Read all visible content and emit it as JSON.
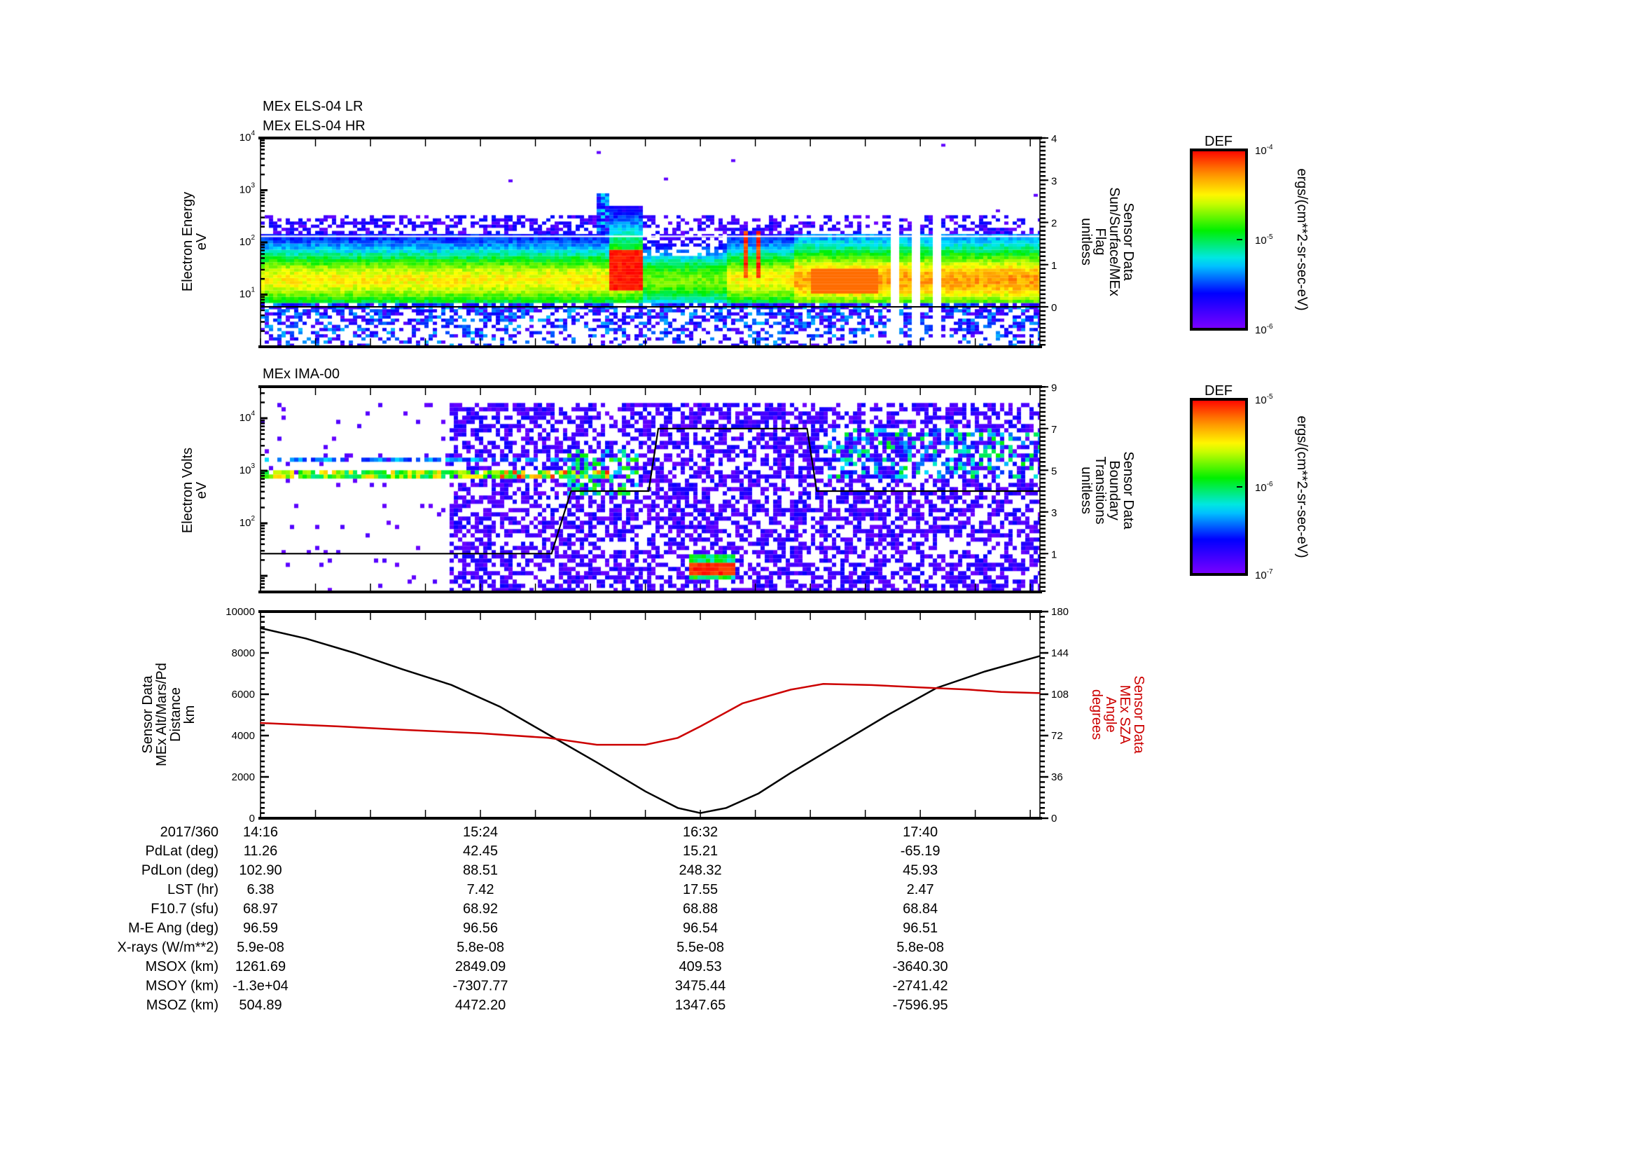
{
  "chart_data": [
    {
      "type": "heatmap",
      "titles": [
        "MEx ELS-04 LR",
        "MEx ELS-04 HR"
      ],
      "ylabel": [
        "Electron Energy",
        "eV"
      ],
      "yscale": "log",
      "ylim": [
        1,
        10000
      ],
      "yticks": [
        {
          "base": "10",
          "exp": "1"
        },
        {
          "base": "10",
          "exp": "2"
        },
        {
          "base": "10",
          "exp": "3"
        },
        {
          "base": "10",
          "exp": "4"
        }
      ],
      "ytick_values": [
        10,
        100,
        1000,
        10000
      ],
      "y2label": [
        "Sensor Data",
        "Sun/Surface/MEx",
        "Flag",
        "unitless"
      ],
      "y2lim": [
        -0.95,
        4
      ],
      "y2ticks": [
        "0",
        "1",
        "2",
        "3",
        "4"
      ],
      "y2_series": {
        "name": "Sun/Surface/MEx Flag",
        "points": [
          [
            "14:16",
            0
          ],
          [
            "18:17",
            0
          ]
        ]
      },
      "colorbar": {
        "title": "DEF",
        "unit": "ergs/(cm**2-sr-sec-eV)",
        "ticks": [
          {
            "base": "10",
            "exp": "-4"
          },
          {
            "base": "10",
            "exp": "-5"
          },
          {
            "base": "10",
            "exp": "-6"
          }
        ],
        "range_exp": [
          -6,
          -4
        ]
      },
      "features": [
        {
          "desc": "main band",
          "time": [
            "14:16",
            "18:17"
          ],
          "log_energy": [
            0.8,
            2.15
          ],
          "level": 0.6
        },
        {
          "desc": "intense burst",
          "time": [
            "16:03",
            "16:14"
          ],
          "log_energy": [
            1.05,
            1.85
          ],
          "level": 0.95
        },
        {
          "desc": "spikes",
          "time": [
            "16:45",
            "16:50"
          ],
          "log_energy": [
            1.3,
            2.2
          ],
          "level": 0.95
        },
        {
          "desc": "data gaps",
          "time": [
            [
              "17:30",
              "17:33"
            ],
            [
              "17:37",
              "17:39"
            ],
            [
              "17:43",
              "17:46"
            ]
          ]
        }
      ]
    },
    {
      "type": "heatmap",
      "title": "MEx IMA-00",
      "ylabel": [
        "Electron Volts",
        "eV"
      ],
      "yscale": "log",
      "ylim": [
        5,
        40000
      ],
      "yticks": [
        {
          "base": "10",
          "exp": "2"
        },
        {
          "base": "10",
          "exp": "3"
        },
        {
          "base": "10",
          "exp": "4"
        }
      ],
      "ytick_values": [
        100,
        1000,
        10000
      ],
      "y2label": [
        "Sensor Data",
        "Boundary",
        "Transitions",
        "unitless"
      ],
      "y2lim": [
        -0.85,
        9
      ],
      "y2ticks": [
        "1",
        "3",
        "5",
        "7",
        "9"
      ],
      "y2_series": {
        "name": "Boundary Transitions",
        "points": [
          [
            "14:16",
            1
          ],
          [
            "15:46",
            1
          ],
          [
            "15:52",
            4
          ],
          [
            "16:16",
            4
          ],
          [
            "16:19",
            7
          ],
          [
            "17:05",
            7
          ],
          [
            "17:08",
            4
          ],
          [
            "18:17",
            4
          ]
        ]
      },
      "colorbar": {
        "title": "DEF",
        "unit": "ergs/(cm**2-sr-sec-eV)",
        "ticks": [
          {
            "base": "10",
            "exp": "-5"
          },
          {
            "base": "10",
            "exp": "-6"
          },
          {
            "base": "10",
            "exp": "-7"
          }
        ],
        "range_exp": [
          -7,
          -5
        ]
      },
      "features": [
        {
          "desc": "ion band",
          "time": [
            "14:16",
            "16:00"
          ],
          "log_energy": [
            2.85,
            3.0
          ],
          "level": 0.7
        },
        {
          "desc": "background",
          "time": [
            "15:14",
            "18:17"
          ],
          "log_energy": [
            0.7,
            4.25
          ],
          "level": 0.1
        },
        {
          "desc": "low-energy burst",
          "time": [
            "16:28",
            "16:42"
          ],
          "log_energy": [
            1.0,
            1.2
          ],
          "level": 0.95
        }
      ]
    },
    {
      "type": "line",
      "ylabel": [
        "Sensor Data",
        "MEx Alt/Mars/Pd",
        "Distance",
        "km"
      ],
      "ylim": [
        0,
        10000
      ],
      "yticks": [
        "0",
        "2000",
        "4000",
        "6000",
        "8000",
        "10000"
      ],
      "y2label": [
        "Sensor Data",
        "MEx SZA",
        "Angle",
        "degrees"
      ],
      "y2lim": [
        0,
        180
      ],
      "y2ticks": [
        "0",
        "36",
        "72",
        "108",
        "144",
        "180"
      ],
      "series": [
        {
          "name": "MEx Alt/Mars/Pd Distance",
          "color": "#000000",
          "axis": "left",
          "points": [
            [
              "14:16",
              9200
            ],
            [
              "14:30",
              8700
            ],
            [
              "14:45",
              8000
            ],
            [
              "15:00",
              7200
            ],
            [
              "15:15",
              6450
            ],
            [
              "15:30",
              5400
            ],
            [
              "15:45",
              4050
            ],
            [
              "16:00",
              2700
            ],
            [
              "16:15",
              1300
            ],
            [
              "16:25",
              500
            ],
            [
              "16:32",
              250
            ],
            [
              "16:40",
              500
            ],
            [
              "16:50",
              1200
            ],
            [
              "17:00",
              2200
            ],
            [
              "17:15",
              3600
            ],
            [
              "17:30",
              5000
            ],
            [
              "17:45",
              6300
            ],
            [
              "18:00",
              7100
            ],
            [
              "18:17",
              7850
            ]
          ]
        },
        {
          "name": "MEx SZA Angle",
          "color": "#cc0000",
          "axis": "right",
          "points": [
            [
              "14:16",
              83
            ],
            [
              "14:40",
              80
            ],
            [
              "15:00",
              77
            ],
            [
              "15:24",
              74
            ],
            [
              "15:45",
              70
            ],
            [
              "16:00",
              64
            ],
            [
              "16:15",
              64
            ],
            [
              "16:25",
              70
            ],
            [
              "16:32",
              80
            ],
            [
              "16:45",
              100
            ],
            [
              "17:00",
              112
            ],
            [
              "17:10",
              117
            ],
            [
              "17:25",
              116
            ],
            [
              "17:40",
              114
            ],
            [
              "17:55",
              112
            ],
            [
              "18:05",
              110
            ],
            [
              "18:17",
              109
            ]
          ]
        }
      ]
    }
  ],
  "xaxis": {
    "date_label": "2017/360",
    "range": [
      "14:16",
      "18:17"
    ],
    "tick_labels": [
      "14:16",
      "15:24",
      "16:32",
      "17:40"
    ]
  },
  "table": {
    "rows": [
      {
        "label": "PdLat (deg)",
        "values": [
          "11.26",
          "42.45",
          "15.21",
          "-65.19"
        ]
      },
      {
        "label": "PdLon (deg)",
        "values": [
          "102.90",
          "88.51",
          "248.32",
          "45.93"
        ]
      },
      {
        "label": "LST (hr)",
        "values": [
          "6.38",
          "7.42",
          "17.55",
          "2.47"
        ]
      },
      {
        "label": "F10.7 (sfu)",
        "values": [
          "68.97",
          "68.92",
          "68.88",
          "68.84"
        ]
      },
      {
        "label": "M-E Ang (deg)",
        "values": [
          "96.59",
          "96.56",
          "96.54",
          "96.51"
        ]
      },
      {
        "label": "X-rays (W/m**2)",
        "values": [
          "5.9e-08",
          "5.8e-08",
          "5.5e-08",
          "5.8e-08"
        ]
      },
      {
        "label": "MSOX (km)",
        "values": [
          "1261.69",
          "2849.09",
          "409.53",
          "-3640.30"
        ]
      },
      {
        "label": "MSOY (km)",
        "values": [
          "-1.3e+04",
          "-7307.77",
          "3475.44",
          "-2741.42"
        ]
      },
      {
        "label": "MSOZ (km)",
        "values": [
          "504.89",
          "4472.20",
          "1347.65",
          "-7596.95"
        ]
      }
    ]
  }
}
